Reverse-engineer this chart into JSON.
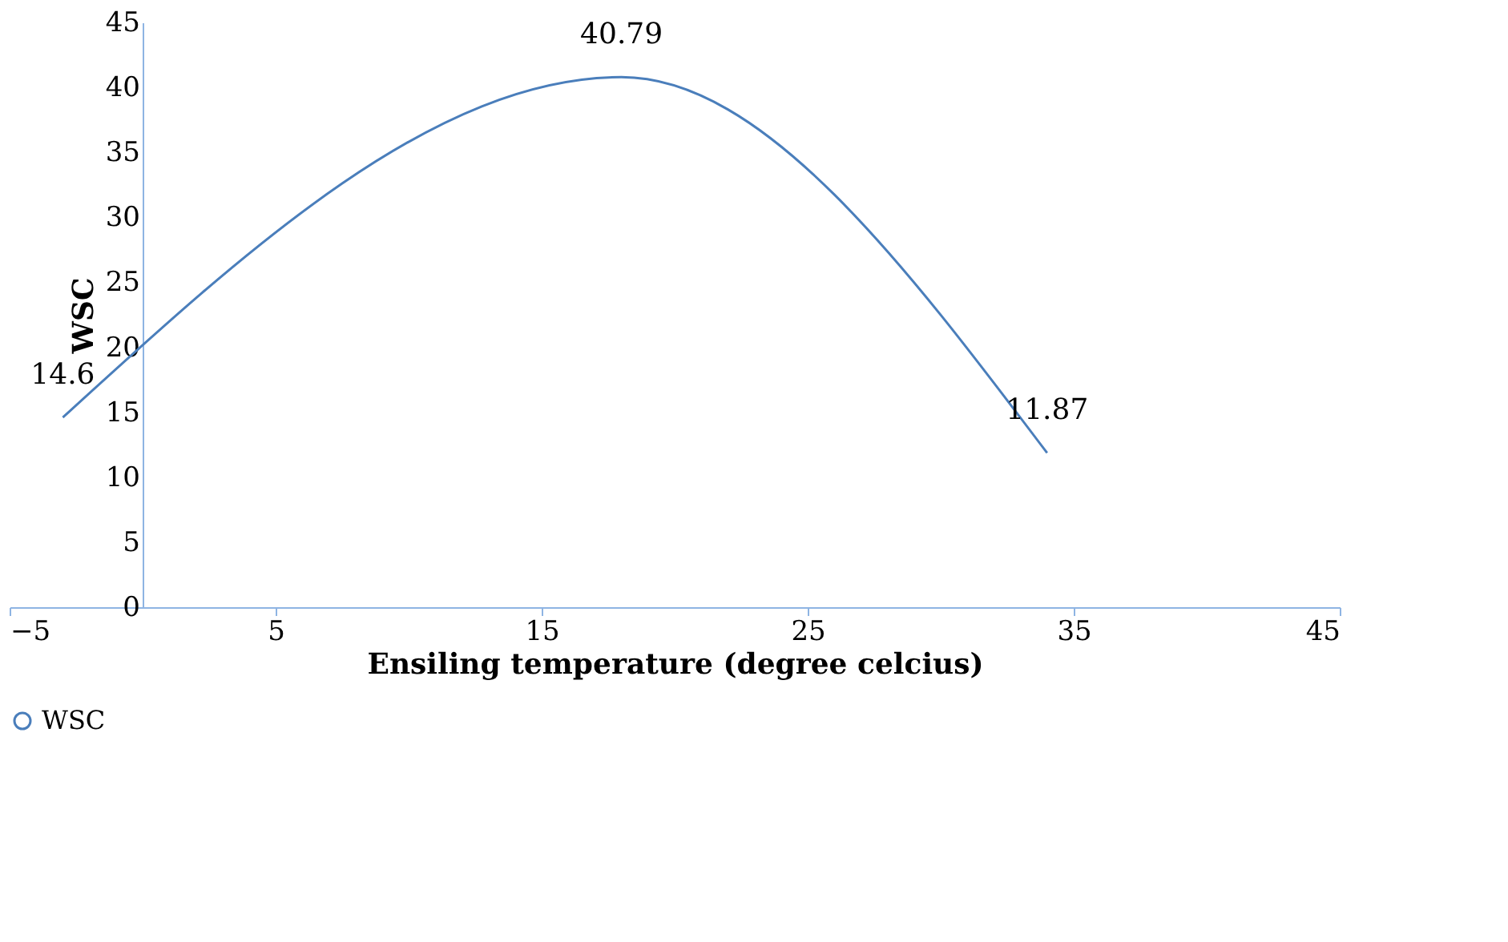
{
  "chart_data": {
    "type": "line",
    "xlabel": "Ensiling temperature (degree celcius)",
    "ylabel": "WSC",
    "x": [
      -3,
      18,
      34
    ],
    "series": [
      {
        "name": "WSC",
        "color": "#4a7ebb",
        "values": [
          14.6,
          40.79,
          11.87
        ]
      }
    ],
    "xlim": [
      -5,
      45
    ],
    "xticks": [
      -5,
      5,
      15,
      25,
      35,
      45
    ],
    "ylim": [
      0,
      45
    ],
    "yticks": [
      0,
      5,
      10,
      15,
      20,
      25,
      30,
      35,
      40,
      45
    ],
    "grid": false,
    "legend": "bottom",
    "marker": "none",
    "line_style": "solid",
    "data_labels": true
  }
}
